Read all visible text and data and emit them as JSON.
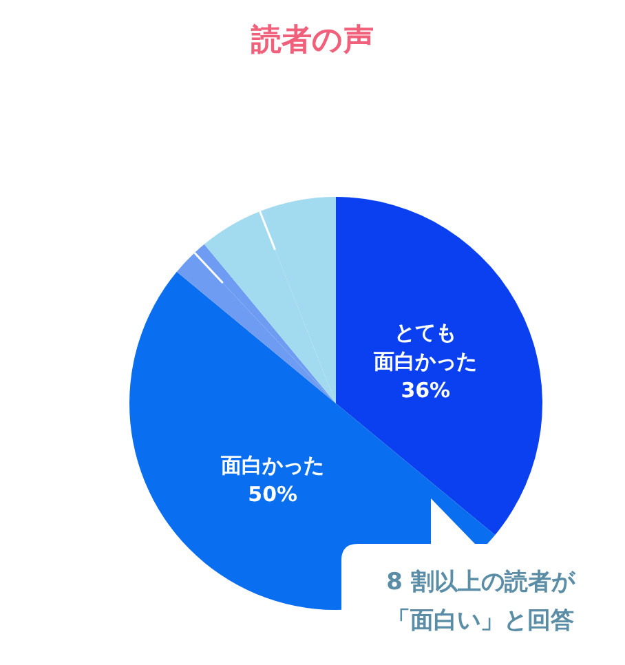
{
  "chart_data": {
    "type": "pie",
    "title": "読者の声",
    "categories": [
      "とても面白かった",
      "面白かった",
      null,
      null,
      null,
      null
    ],
    "values": [
      36,
      50,
      2,
      1,
      5,
      6
    ],
    "colors": [
      "#0a40f0",
      "#0a6ef0",
      "#6e9cf2",
      "#6e9cf2",
      "#a2dbf0",
      "#a2dbf0"
    ],
    "value_labels": [
      "36%",
      "50%",
      null,
      null,
      null,
      null
    ],
    "annotations": [
      "8 割以上の読者が",
      "「面白い」と回答"
    ]
  }
}
